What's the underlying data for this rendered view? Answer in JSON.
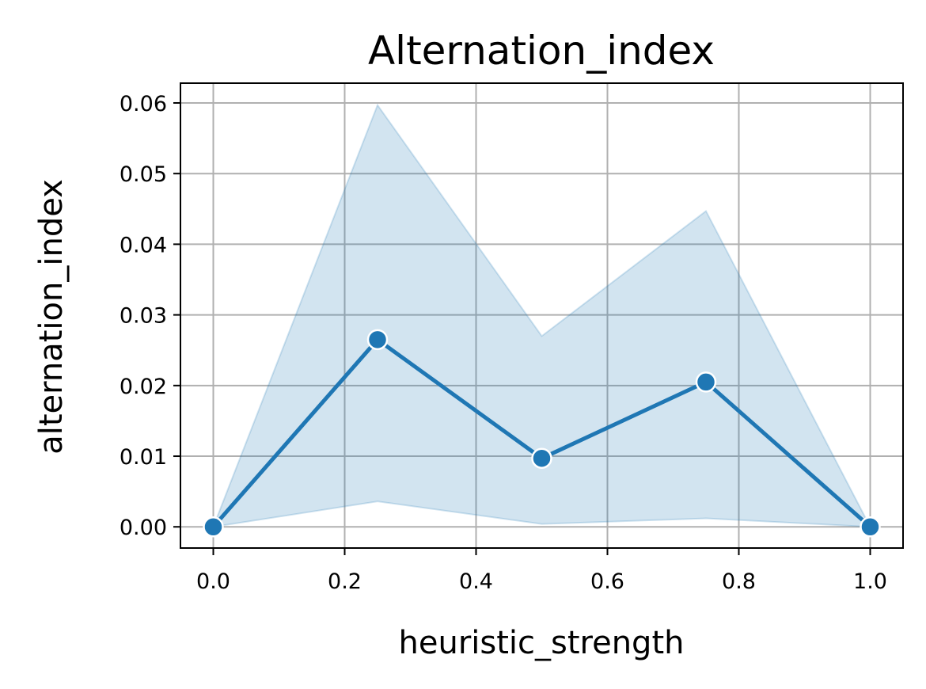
{
  "chart_data": {
    "type": "line",
    "title": "Alternation_index",
    "xlabel": "heuristic_strength",
    "ylabel": "alternation_index",
    "xlim": [
      -0.05,
      1.05
    ],
    "ylim": [
      -0.003,
      0.0628
    ],
    "xticks": [
      0.0,
      0.2,
      0.4,
      0.6,
      0.8,
      1.0
    ],
    "xtick_labels": [
      "0.0",
      "0.2",
      "0.4",
      "0.6",
      "0.8",
      "1.0"
    ],
    "yticks": [
      0.0,
      0.01,
      0.02,
      0.03,
      0.04,
      0.05,
      0.06
    ],
    "ytick_labels": [
      "0.00",
      "0.01",
      "0.02",
      "0.03",
      "0.04",
      "0.05",
      "0.06"
    ],
    "grid": true,
    "series": [
      {
        "x": [
          0.0,
          0.25,
          0.5,
          0.75,
          1.0
        ],
        "y": [
          0.0,
          0.0265,
          0.0097,
          0.0205,
          0.0
        ],
        "ci_lower": [
          0.0,
          0.0036,
          0.0004,
          0.0012,
          0.0
        ],
        "ci_upper": [
          0.0,
          0.0597,
          0.027,
          0.0447,
          0.0
        ],
        "color": "#1f77b4",
        "band_color": "#1f77b4"
      }
    ]
  }
}
